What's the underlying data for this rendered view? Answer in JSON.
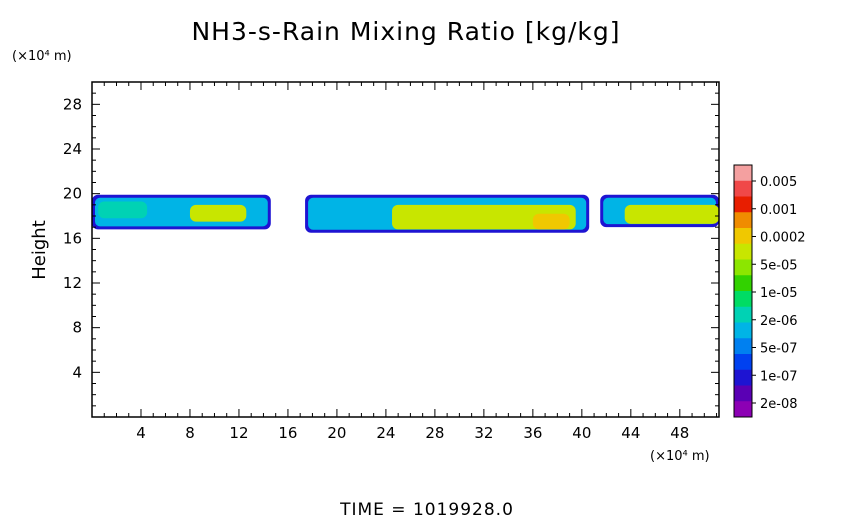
{
  "chart_data": {
    "type": "heatmap",
    "title": "NH3-s-Rain Mixing Ratio [kg/kg]",
    "ylabel": "Height",
    "y_unit": "(×10⁴ m)",
    "x_unit": "(×10⁴ m)",
    "footer": "TIME = 1019928.0",
    "xlim": [
      0,
      51.2
    ],
    "ylim": [
      0,
      30
    ],
    "x_ticks": [
      4,
      8,
      12,
      16,
      20,
      24,
      28,
      32,
      36,
      40,
      44,
      48
    ],
    "y_ticks": [
      4,
      8,
      12,
      16,
      20,
      24,
      28
    ],
    "colorbar": {
      "labels": [
        "0.005",
        "0.001",
        "0.0002",
        "5e-05",
        "1e-05",
        "2e-06",
        "5e-07",
        "1e-07",
        "2e-08"
      ],
      "colors_top_to_bottom": [
        "#f4a0a0",
        "#f04848",
        "#e81e00",
        "#f08c00",
        "#f0c800",
        "#c8e600",
        "#8ce600",
        "#32d200",
        "#00dc64",
        "#00d2b4",
        "#00b4e6",
        "#0080f0",
        "#0041f0",
        "#1e14d2",
        "#5a00b4",
        "#8c00b4"
      ]
    },
    "regions": [
      {
        "x": [
          0,
          14.6
        ],
        "y": [
          16.8,
          19.9
        ],
        "level": "1e-07",
        "core": [
          {
            "x": [
              8,
              12.6
            ],
            "y": [
              17.5,
              19
            ],
            "level": "1e-05"
          },
          {
            "x": [
              0.5,
              4.5
            ],
            "y": [
              17.8,
              19.3
            ],
            "level": "2e-06"
          }
        ]
      },
      {
        "x": [
          17.4,
          40.6
        ],
        "y": [
          16.5,
          19.9
        ],
        "level": "1e-07",
        "core": [
          {
            "x": [
              24.5,
              39.5
            ],
            "y": [
              16.8,
              19
            ],
            "level": "1e-05"
          },
          {
            "x": [
              36,
              39
            ],
            "y": [
              16.8,
              18.2
            ],
            "level": "0.0002"
          }
        ]
      },
      {
        "x": [
          41.5,
          51.2
        ],
        "y": [
          17,
          19.9
        ],
        "level": "1e-07",
        "core": [
          {
            "x": [
              43.5,
              51.2
            ],
            "y": [
              17.3,
              19
            ],
            "level": "1e-05"
          }
        ]
      }
    ]
  }
}
